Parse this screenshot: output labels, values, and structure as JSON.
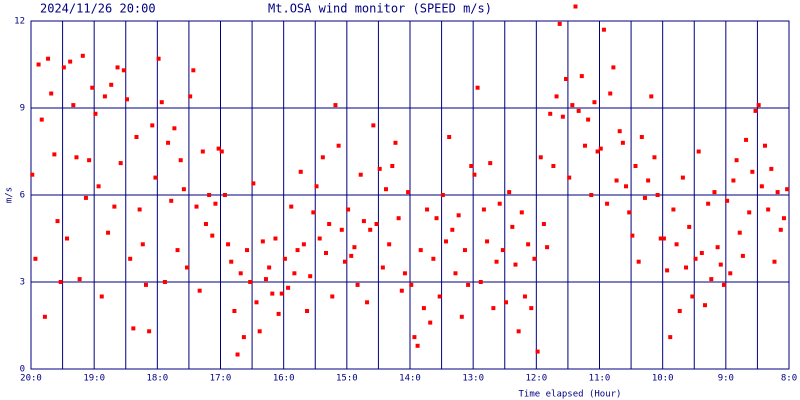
{
  "chart_data": {
    "type": "scatter",
    "timestamp": "2024/11/26 20:00",
    "title": "Mt.OSA wind monitor (SPEED m/s)",
    "y_label": "m/s",
    "x_label": "Time elapsed (Hour)",
    "color": "#ff0000",
    "grid": true,
    "xlim": [
      0,
      12
    ],
    "ylim": [
      0,
      12
    ],
    "xticks": [
      {
        "value": 0,
        "label": "20:0"
      },
      {
        "value": 1,
        "label": "19:0"
      },
      {
        "value": 2,
        "label": "18:0"
      },
      {
        "value": 3,
        "label": "17:0"
      },
      {
        "value": 4,
        "label": "16:0"
      },
      {
        "value": 5,
        "label": "15:0"
      },
      {
        "value": 6,
        "label": "14:0"
      },
      {
        "value": 7,
        "label": "13:0"
      },
      {
        "value": 8,
        "label": "12:0"
      },
      {
        "value": 9,
        "label": "11:0"
      },
      {
        "value": 10,
        "label": "10:0"
      },
      {
        "value": 11,
        "label": "9:0"
      },
      {
        "value": 12,
        "label": "8:0"
      }
    ],
    "xminorticks": [
      0.5,
      1.5,
      2.5,
      3.5,
      4.5,
      5.5,
      6.5,
      7.5,
      8.5,
      9.5,
      10.5,
      11.5
    ],
    "yticks": [
      0,
      3,
      6,
      9,
      12
    ],
    "x": [
      0.02,
      0.07,
      0.12,
      0.17,
      0.22,
      0.27,
      0.32,
      0.37,
      0.42,
      0.47,
      0.52,
      0.57,
      0.62,
      0.67,
      0.72,
      0.77,
      0.82,
      0.87,
      0.92,
      0.97,
      1.02,
      1.07,
      1.12,
      1.17,
      1.22,
      1.27,
      1.32,
      1.37,
      1.42,
      1.47,
      1.52,
      1.57,
      1.62,
      1.67,
      1.72,
      1.77,
      1.82,
      1.87,
      1.92,
      1.97,
      2.02,
      2.07,
      2.12,
      2.17,
      2.22,
      2.27,
      2.32,
      2.37,
      2.42,
      2.47,
      2.52,
      2.57,
      2.62,
      2.67,
      2.72,
      2.77,
      2.82,
      2.87,
      2.92,
      2.97,
      3.02,
      3.07,
      3.12,
      3.17,
      3.22,
      3.27,
      3.32,
      3.37,
      3.42,
      3.47,
      3.52,
      3.57,
      3.62,
      3.67,
      3.72,
      3.77,
      3.82,
      3.87,
      3.92,
      3.97,
      4.02,
      4.07,
      4.12,
      4.17,
      4.22,
      4.27,
      4.32,
      4.37,
      4.42,
      4.47,
      4.52,
      4.57,
      4.62,
      4.67,
      4.72,
      4.77,
      4.82,
      4.87,
      4.92,
      4.97,
      5.02,
      5.07,
      5.12,
      5.17,
      5.22,
      5.27,
      5.32,
      5.37,
      5.42,
      5.47,
      5.52,
      5.57,
      5.62,
      5.67,
      5.72,
      5.77,
      5.82,
      5.87,
      5.92,
      5.97,
      6.02,
      6.07,
      6.12,
      6.17,
      6.22,
      6.27,
      6.32,
      6.37,
      6.42,
      6.47,
      6.52,
      6.57,
      6.62,
      6.67,
      6.72,
      6.77,
      6.82,
      6.87,
      6.92,
      6.97,
      7.02,
      7.07,
      7.12,
      7.17,
      7.22,
      7.27,
      7.32,
      7.37,
      7.42,
      7.47,
      7.52,
      7.57,
      7.62,
      7.67,
      7.72,
      7.77,
      7.82,
      7.87,
      7.92,
      7.97,
      8.02,
      8.07,
      8.12,
      8.17,
      8.22,
      8.27,
      8.32,
      8.37,
      8.42,
      8.47,
      8.52,
      8.57,
      8.62,
      8.67,
      8.72,
      8.77,
      8.82,
      8.87,
      8.92,
      8.97,
      9.02,
      9.07,
      9.12,
      9.17,
      9.22,
      9.27,
      9.32,
      9.37,
      9.42,
      9.47,
      9.52,
      9.57,
      9.62,
      9.67,
      9.72,
      9.77,
      9.82,
      9.87,
      9.92,
      9.97,
      10.02,
      10.07,
      10.12,
      10.17,
      10.22,
      10.27,
      10.32,
      10.37,
      10.42,
      10.47,
      10.52,
      10.57,
      10.62,
      10.67,
      10.72,
      10.77,
      10.82,
      10.87,
      10.92,
      10.97,
      11.02,
      11.07,
      11.12,
      11.17,
      11.22,
      11.27,
      11.32,
      11.37,
      11.42,
      11.47,
      11.52,
      11.57,
      11.62,
      11.67,
      11.72,
      11.77,
      11.82,
      11.87,
      11.92,
      11.97
    ],
    "values": [
      6.7,
      3.8,
      10.5,
      8.6,
      1.8,
      10.7,
      9.5,
      7.4,
      5.1,
      3.0,
      10.4,
      4.5,
      10.6,
      9.1,
      7.3,
      3.1,
      10.8,
      5.9,
      7.2,
      9.7,
      8.8,
      6.3,
      2.5,
      9.4,
      4.7,
      9.8,
      5.6,
      10.4,
      7.1,
      10.3,
      9.3,
      3.8,
      1.4,
      8.0,
      5.5,
      4.3,
      2.9,
      1.3,
      8.4,
      6.6,
      10.7,
      9.2,
      3.0,
      7.8,
      5.8,
      8.3,
      4.1,
      7.2,
      6.2,
      3.5,
      9.4,
      10.3,
      5.6,
      2.7,
      7.5,
      5.0,
      6.0,
      4.6,
      5.7,
      7.6,
      7.5,
      6.0,
      4.3,
      3.7,
      2.0,
      0.5,
      3.3,
      1.1,
      4.1,
      3.0,
      6.4,
      2.3,
      1.3,
      4.4,
      3.1,
      3.5,
      2.6,
      4.5,
      1.9,
      2.6,
      3.8,
      2.8,
      5.6,
      3.3,
      4.1,
      6.8,
      4.3,
      2.0,
      3.2,
      5.4,
      6.3,
      4.5,
      7.3,
      4.0,
      5.0,
      2.5,
      9.1,
      7.7,
      4.8,
      3.7,
      5.5,
      3.9,
      4.2,
      2.9,
      6.7,
      5.1,
      2.3,
      4.8,
      8.4,
      5.0,
      6.9,
      3.5,
      6.2,
      4.3,
      7.0,
      7.8,
      5.2,
      2.7,
      3.3,
      6.1,
      2.9,
      1.1,
      0.8,
      4.1,
      2.1,
      5.5,
      1.6,
      3.8,
      5.2,
      2.5,
      6.0,
      4.4,
      8.0,
      4.8,
      3.3,
      5.3,
      1.8,
      4.1,
      2.9,
      7.0,
      6.7,
      9.7,
      3.0,
      5.5,
      4.4,
      7.1,
      2.1,
      3.7,
      5.7,
      4.1,
      2.3,
      6.1,
      4.9,
      3.6,
      1.3,
      5.4,
      2.5,
      4.3,
      2.1,
      3.8,
      0.6,
      7.3,
      5.0,
      4.2,
      8.8,
      7.0,
      9.4,
      11.9,
      8.7,
      10.0,
      6.6,
      9.1,
      12.5,
      8.9,
      10.1,
      7.7,
      8.6,
      6.0,
      9.2,
      7.5,
      7.6,
      11.7,
      5.7,
      9.5,
      10.4,
      6.5,
      8.2,
      7.8,
      6.3,
      5.4,
      4.6,
      7.0,
      3.7,
      8.0,
      5.9,
      6.5,
      9.4,
      7.3,
      6.0,
      4.5,
      4.5,
      3.4,
      1.1,
      5.5,
      4.3,
      2.0,
      6.6,
      3.5,
      4.9,
      2.5,
      3.8,
      7.5,
      4.0,
      2.2,
      5.7,
      3.1,
      6.1,
      4.2,
      3.6,
      2.9,
      5.8,
      3.3,
      6.5,
      7.2,
      4.7,
      3.9,
      7.9,
      5.4,
      6.8,
      8.9,
      9.1,
      6.3,
      7.7,
      5.5,
      6.9,
      3.7,
      6.1,
      4.8,
      5.2,
      6.2
    ]
  }
}
